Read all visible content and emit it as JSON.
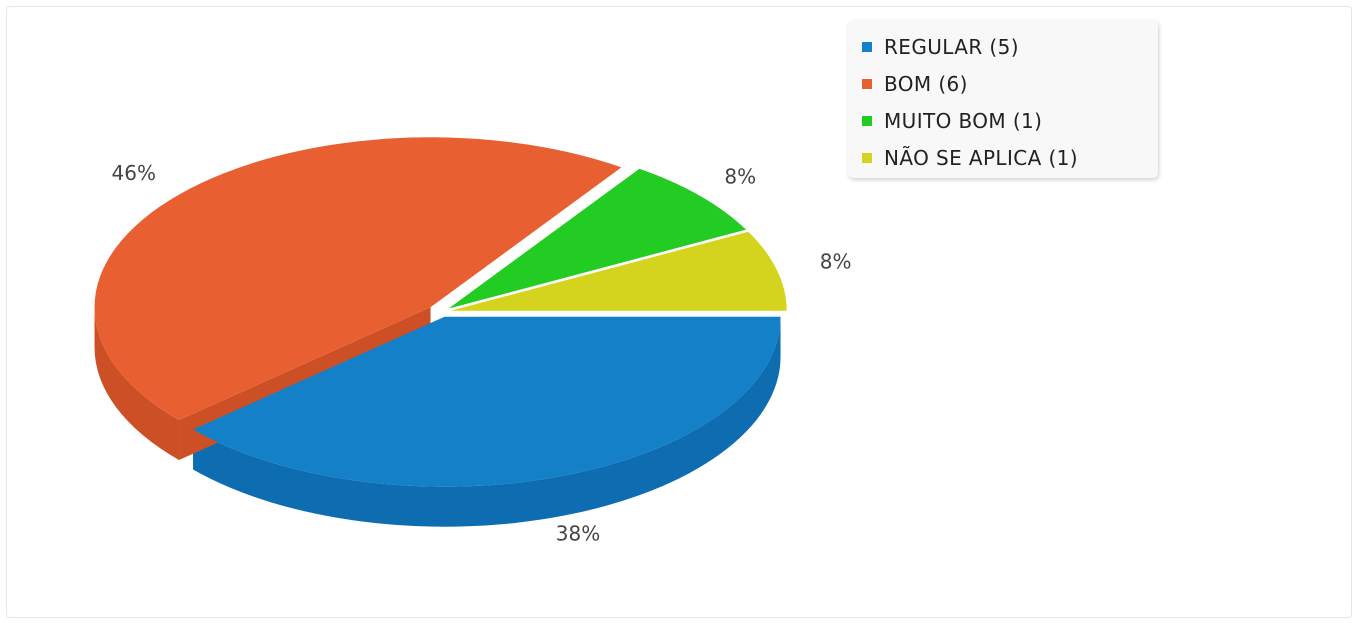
{
  "chart_data": {
    "type": "pie",
    "variant": "3d-exploded",
    "title": "",
    "slices": [
      {
        "label": "REGULAR",
        "count": 5,
        "legend": "REGULAR (5)",
        "percent_label": "38%",
        "color": "#1380c8",
        "side_color": "#0e6db0"
      },
      {
        "label": "BOM",
        "count": 6,
        "legend": "BOM (6)",
        "percent_label": "46%",
        "color": "#e85f32",
        "side_color": "#cc4f26"
      },
      {
        "label": "MUITO BOM",
        "count": 1,
        "legend": "MUITO BOM (1)",
        "percent_label": "8%",
        "color": "#22cc22",
        "side_color": "#1cb01c"
      },
      {
        "label": "NÃO SE APLICA",
        "count": 1,
        "legend": "NÃO SE APLICA (1)",
        "percent_label": "8%",
        "color": "#d4d41e",
        "side_color": "#b8b818"
      }
    ],
    "legend_position": "top-right"
  }
}
